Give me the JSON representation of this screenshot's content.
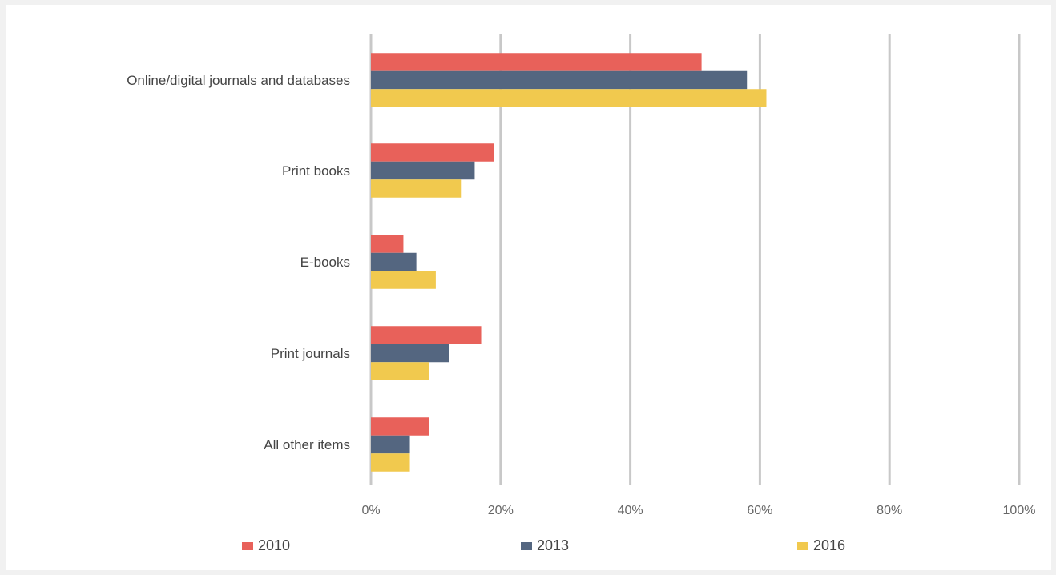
{
  "chart_data": {
    "type": "bar",
    "orientation": "horizontal",
    "categories": [
      "Online/digital journals and databases",
      "Print books",
      "E-books",
      "Print journals",
      "All other items"
    ],
    "series": [
      {
        "name": "2010",
        "color": "#e8615a",
        "values": [
          51,
          19,
          5,
          17,
          9
        ]
      },
      {
        "name": "2013",
        "color": "#546680",
        "values": [
          58,
          16,
          7,
          12,
          6
        ]
      },
      {
        "name": "2016",
        "color": "#f1c94e",
        "values": [
          61,
          14,
          10,
          9,
          6
        ]
      }
    ],
    "xlim": [
      0,
      100
    ],
    "xticks": [
      "0%",
      "20%",
      "40%",
      "60%",
      "80%",
      "100%"
    ],
    "xtick_values": [
      0,
      20,
      40,
      60,
      80,
      100
    ],
    "grid": "vertical",
    "gridline_color": "#c8c8c8",
    "legend_position": "bottom"
  }
}
